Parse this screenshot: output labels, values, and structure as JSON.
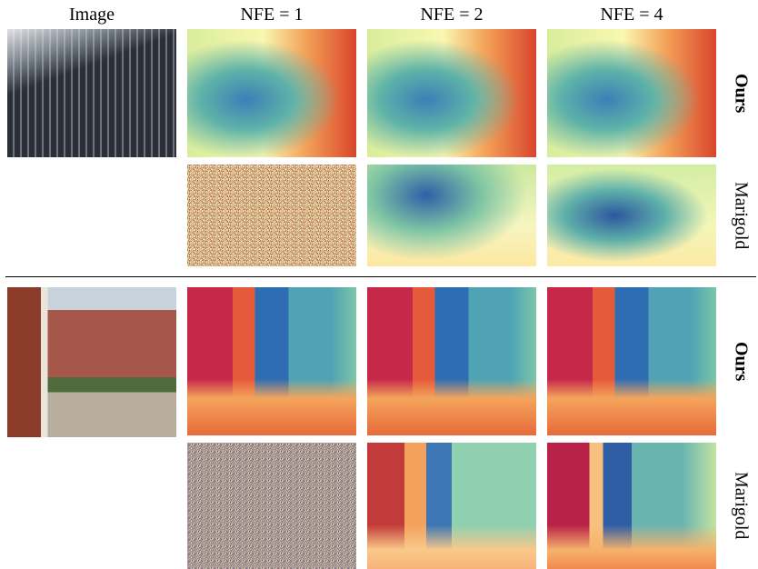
{
  "column_headers": [
    "Image",
    "NFE = 1",
    "NFE = 2",
    "NFE = 4"
  ],
  "blocks": [
    {
      "rows": [
        {
          "label": "Ours"
        },
        {
          "label": "Marigold"
        }
      ]
    },
    {
      "rows": [
        {
          "label": "Ours"
        },
        {
          "label": "Marigold"
        }
      ]
    }
  ]
}
